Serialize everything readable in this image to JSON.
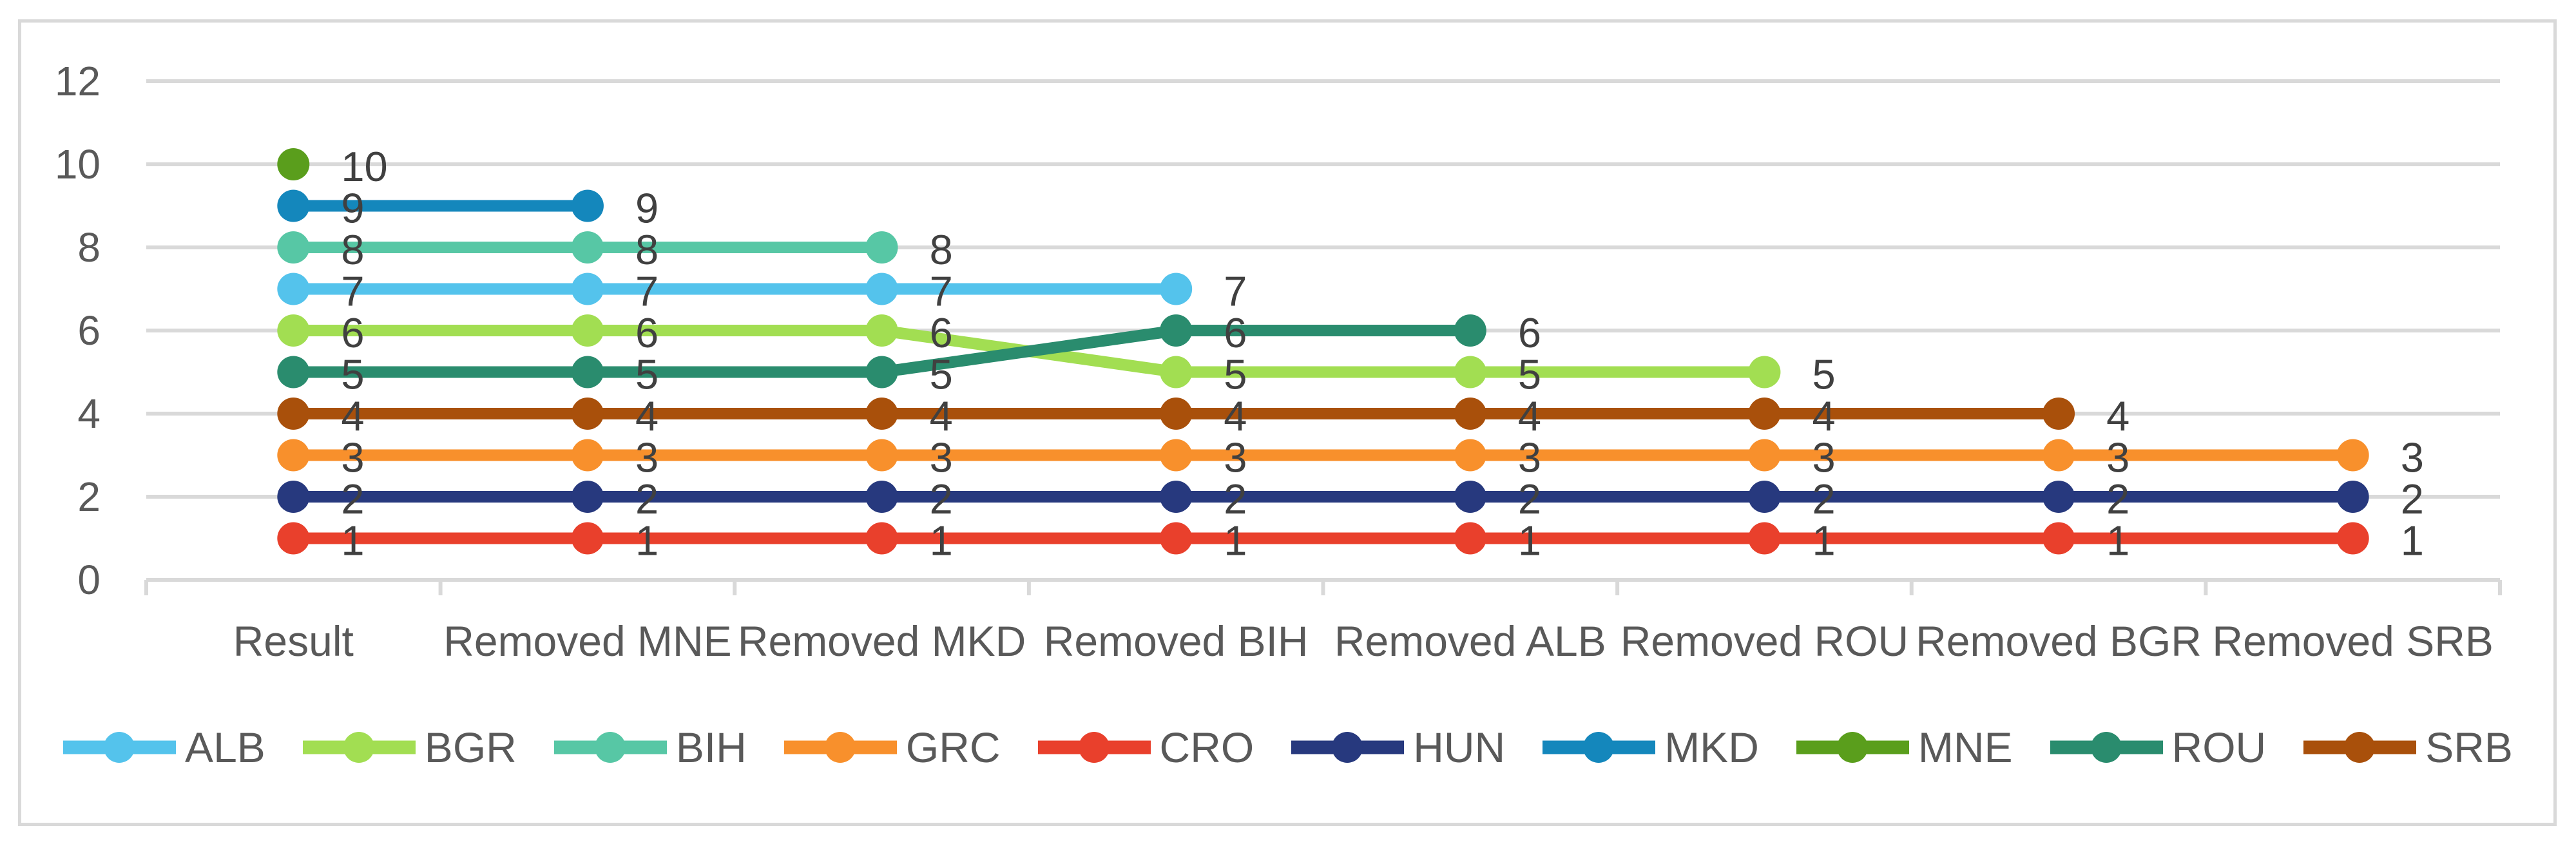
{
  "chart_data": {
    "type": "line",
    "categories": [
      "Result",
      "Removed MNE",
      "Removed MKD",
      "Removed BIH",
      "Removed ALB",
      "Removed ROU",
      "Removed BGR",
      "Removed SRB"
    ],
    "series": [
      {
        "name": "ALB",
        "color": "#54C3EC",
        "values": [
          7,
          7,
          7,
          7,
          null,
          null,
          null,
          null
        ]
      },
      {
        "name": "BGR",
        "color": "#A2DE52",
        "values": [
          6,
          6,
          6,
          5,
          5,
          5,
          null,
          null
        ]
      },
      {
        "name": "BIH",
        "color": "#57C7A5",
        "values": [
          8,
          8,
          8,
          null,
          null,
          null,
          null,
          null
        ]
      },
      {
        "name": "GRC",
        "color": "#F8902C",
        "values": [
          3,
          3,
          3,
          3,
          3,
          3,
          3,
          3
        ]
      },
      {
        "name": "CRO",
        "color": "#E9402C",
        "values": [
          1,
          1,
          1,
          1,
          1,
          1,
          1,
          1
        ]
      },
      {
        "name": "HUN",
        "color": "#27397E",
        "values": [
          2,
          2,
          2,
          2,
          2,
          2,
          2,
          2
        ]
      },
      {
        "name": "MKD",
        "color": "#1487BC",
        "values": [
          9,
          9,
          null,
          null,
          null,
          null,
          null,
          null
        ]
      },
      {
        "name": "MNE",
        "color": "#5A9E1C",
        "values": [
          10,
          null,
          null,
          null,
          null,
          null,
          null,
          null
        ]
      },
      {
        "name": "ROU",
        "color": "#2A8C6E",
        "values": [
          5,
          5,
          5,
          6,
          6,
          null,
          null,
          null
        ]
      },
      {
        "name": "SRB",
        "color": "#A9500B",
        "values": [
          4,
          4,
          4,
          4,
          4,
          4,
          4,
          null
        ]
      }
    ],
    "ylim": [
      0,
      12
    ],
    "yticks": [
      0,
      2,
      4,
      6,
      8,
      10,
      12
    ],
    "grid": true,
    "marker": "circle",
    "data_labels": "right",
    "legend_position": "bottom"
  },
  "colors": {
    "background": "#FFFFFF",
    "frame_border": "#D9D9D9",
    "gridline": "#D9D9D9",
    "axis_line": "#D9D9D9",
    "axis_tick_label": "#595959",
    "category_label": "#595959",
    "data_label": "#404040",
    "legend_label": "#595959"
  }
}
